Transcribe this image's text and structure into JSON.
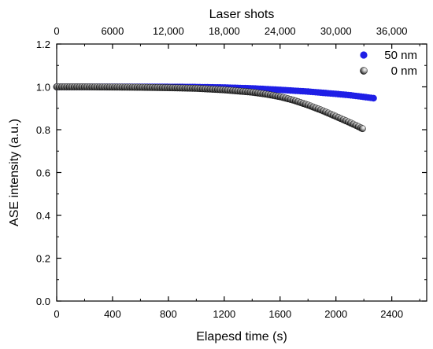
{
  "chart_data": {
    "type": "scatter",
    "xlabel": "Elapesd time (s)",
    "ylabel": "ASE intensity (a.u.)",
    "x2label": "Laser shots",
    "xlim": [
      0,
      2650
    ],
    "ylim": [
      0.0,
      1.2
    ],
    "x2lim": [
      0,
      39750
    ],
    "xticks": [
      0,
      400,
      800,
      1200,
      1600,
      2000,
      2400
    ],
    "xtick_labels": [
      "0",
      "400",
      "800",
      "1200",
      "1600",
      "2000",
      "2400"
    ],
    "yticks": [
      0.0,
      0.2,
      0.4,
      0.6,
      0.8,
      1.0,
      1.2
    ],
    "ytick_labels": [
      "0.0",
      "0.2",
      "0.4",
      "0.6",
      "0.8",
      "1.0",
      "1.2"
    ],
    "x2ticks": [
      0,
      6000,
      12000,
      18000,
      24000,
      30000,
      36000
    ],
    "x2tick_labels": [
      "0",
      "6000",
      "12,000",
      "18,000",
      "24,000",
      "30,000",
      "36,000"
    ],
    "grid": false,
    "legend_position": "top-right",
    "series": [
      {
        "name": "50 nm",
        "color": "#1f1fe6",
        "marker": "filled-circle",
        "x": [
          0,
          200,
          400,
          600,
          800,
          1000,
          1200,
          1400,
          1600,
          1800,
          2000,
          2100,
          2200,
          2270
        ],
        "y": [
          1.0,
          1.0,
          1.0,
          1.0,
          1.0,
          0.999,
          0.997,
          0.993,
          0.986,
          0.978,
          0.967,
          0.961,
          0.953,
          0.947
        ]
      },
      {
        "name": "0 nm",
        "color": "#111111",
        "marker": "shaded-sphere",
        "x": [
          0,
          200,
          400,
          600,
          800,
          1000,
          1200,
          1400,
          1500,
          1600,
          1700,
          1800,
          1900,
          2000,
          2100,
          2150,
          2190
        ],
        "y": [
          1.0,
          1.0,
          0.999,
          0.998,
          0.996,
          0.993,
          0.986,
          0.975,
          0.966,
          0.954,
          0.937,
          0.915,
          0.89,
          0.862,
          0.833,
          0.818,
          0.805
        ]
      }
    ]
  }
}
